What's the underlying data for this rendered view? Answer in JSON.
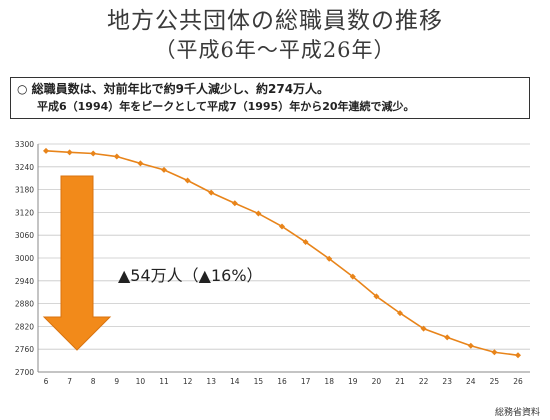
{
  "header": {
    "title": "地方公共団体の総職員数の推移",
    "subtitle": "（平成6年～平成26年）"
  },
  "summary": {
    "line1": "○ 総職員数は、対前年比で約9千人減少し、約274万人。",
    "line2": "平成6（1994）年をピークとして平成7（1995）年から20年連続で減少。"
  },
  "annotation": {
    "label": "▲54万人（▲16%）",
    "arrow_color": "#f28a1a"
  },
  "source_note": "総務省資料",
  "chart_data": {
    "type": "line",
    "x": [
      6,
      7,
      8,
      9,
      10,
      11,
      12,
      13,
      14,
      15,
      16,
      17,
      18,
      19,
      20,
      21,
      22,
      23,
      24,
      25,
      26
    ],
    "series": [
      {
        "values": [
          3282,
          3278,
          3275,
          3267,
          3249,
          3232,
          3204,
          3172,
          3144,
          3117,
          3083,
          3042,
          2998,
          2951,
          2899,
          2855,
          2814,
          2791,
          2769,
          2752,
          2744
        ],
        "color": "#e8841a"
      }
    ],
    "ylim": [
      2700,
      3300
    ],
    "yticks": [
      2700,
      2760,
      2820,
      2880,
      2940,
      3000,
      3060,
      3120,
      3180,
      3240,
      3300
    ],
    "grid": true,
    "title": "",
    "xlabel": "",
    "ylabel": ""
  }
}
